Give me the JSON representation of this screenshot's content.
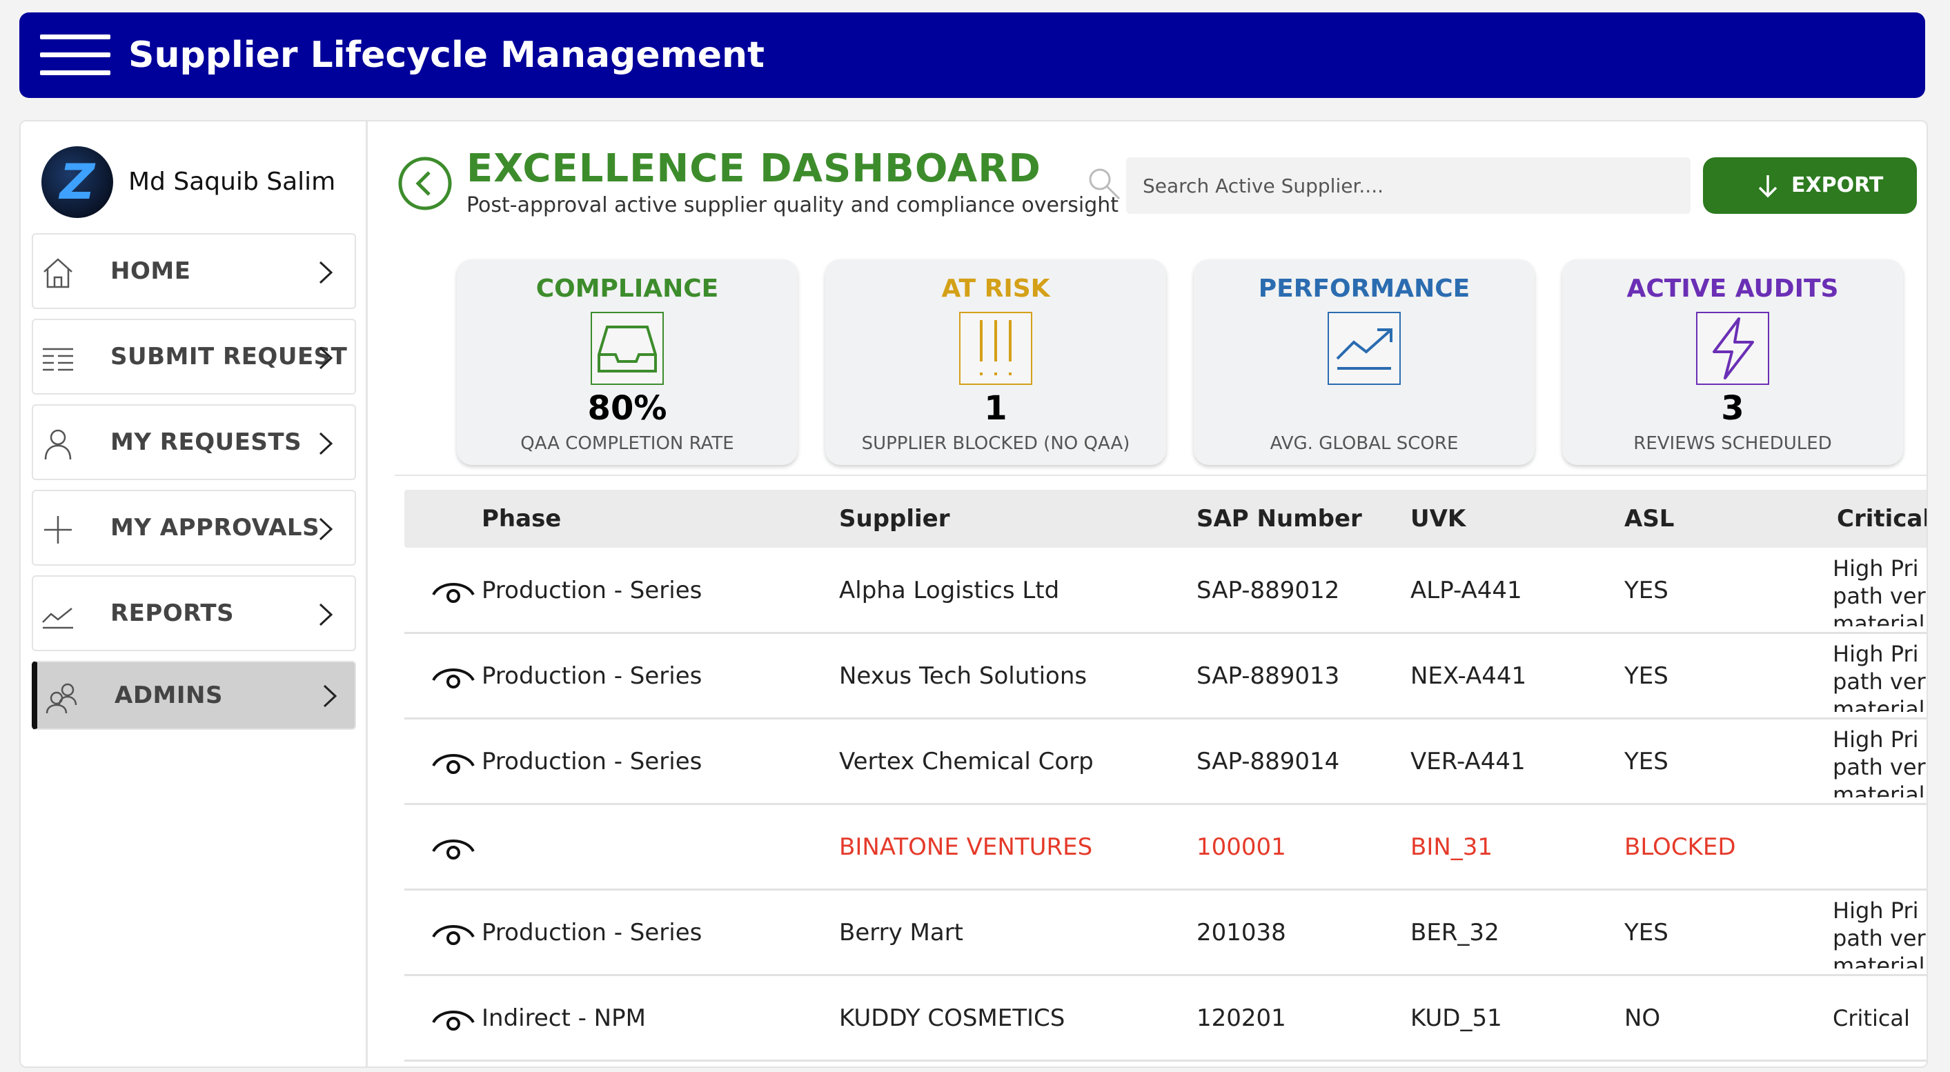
{
  "header": {
    "title": "Supplier Lifecycle Management"
  },
  "user": {
    "name": "Md Saquib Salim",
    "avatar_letter": "Z"
  },
  "sidebar": {
    "items": [
      {
        "label": "HOME",
        "icon": "home-icon"
      },
      {
        "label": "SUBMIT REQUEST",
        "icon": "list-icon"
      },
      {
        "label": "MY REQUESTS",
        "icon": "person-icon"
      },
      {
        "label": "MY APPROVALS",
        "icon": "plus-icon"
      },
      {
        "label": "REPORTS",
        "icon": "chart-line-icon"
      },
      {
        "label": "ADMINS",
        "icon": "people-icon",
        "active": true
      }
    ]
  },
  "dashboard": {
    "title": "EXCELLENCE DASHBOARD",
    "subtitle": "Post-approval active supplier quality and compliance oversight",
    "search_placeholder": "Search Active Supplier....",
    "export_label": "EXPORT"
  },
  "kpis": [
    {
      "title": "COMPLIANCE",
      "value": "80%",
      "label": "QAA COMPLETION RATE",
      "color": "#3d8c2c",
      "icon": "inbox-icon"
    },
    {
      "title": "AT RISK",
      "value": "1",
      "label": "SUPPLIER BLOCKED (NO QAA)",
      "color": "#d4a017",
      "icon": "exclamation-icon"
    },
    {
      "title": "PERFORMANCE",
      "value": "",
      "label": "AVG. GLOBAL SCORE",
      "color": "#2b6cb0",
      "icon": "trend-up-icon"
    },
    {
      "title": "ACTIVE AUDITS",
      "value": "3",
      "label": "REVIEWS SCHEDULED",
      "color": "#6a2fb5",
      "icon": "lightning-icon"
    }
  ],
  "table": {
    "columns": [
      "Phase",
      "Supplier",
      "SAP Number",
      "UVK",
      "ASL",
      "Critical"
    ],
    "rows": [
      {
        "phase": "Production - Series",
        "supplier": "Alpha Logistics Ltd",
        "sap": "SAP-889012",
        "uvk": "ALP-A441",
        "asl": "YES",
        "critical": "High Pri path ver material"
      },
      {
        "phase": "Production - Series",
        "supplier": "Nexus Tech Solutions",
        "sap": "SAP-889013",
        "uvk": "NEX-A441",
        "asl": "YES",
        "critical": "High Pri path ver material"
      },
      {
        "phase": "Production - Series",
        "supplier": "Vertex Chemical Corp",
        "sap": "SAP-889014",
        "uvk": "VER-A441",
        "asl": "YES",
        "critical": "High Pri path ver material"
      },
      {
        "phase": "",
        "supplier": "BINATONE VENTURES",
        "sap": "100001",
        "uvk": "BIN_31",
        "asl": "BLOCKED",
        "critical": "",
        "blocked": true
      },
      {
        "phase": "Production - Series",
        "supplier": "Berry Mart",
        "sap": "201038",
        "uvk": "BER_32",
        "asl": "YES",
        "critical": "High Pri path ver material"
      },
      {
        "phase": "Indirect - NPM",
        "supplier": "KUDDY COSMETICS",
        "sap": "120201",
        "uvk": "KUD_51",
        "asl": "NO",
        "critical": "Critical"
      }
    ]
  }
}
